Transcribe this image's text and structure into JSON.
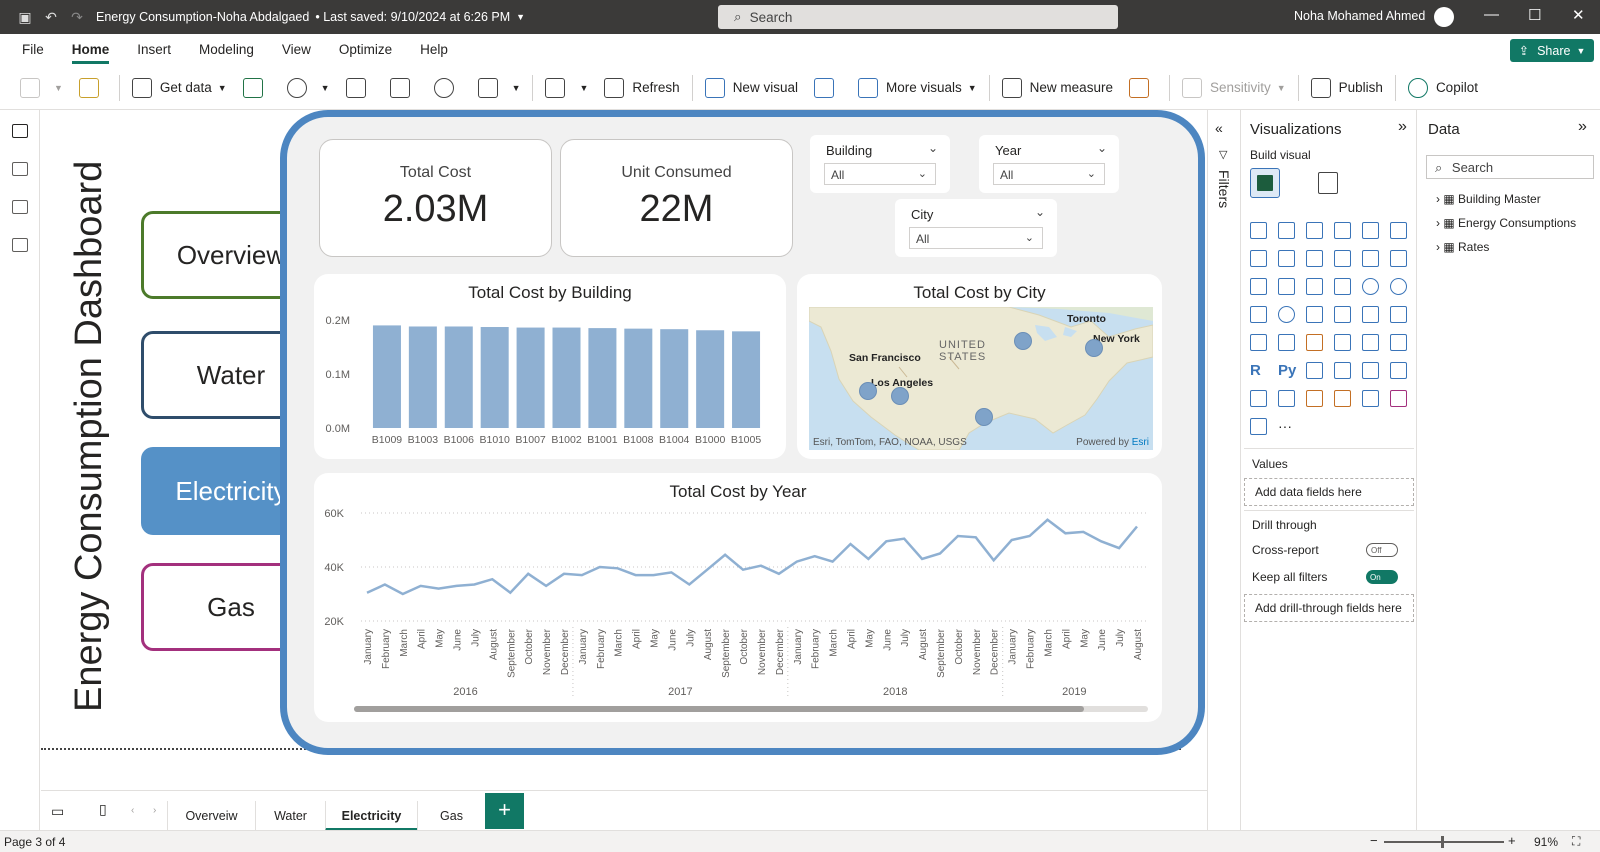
{
  "titlebar": {
    "doc_title": "Energy Consumption-Noha Abdalgaed",
    "saved_status": "• Last saved: 9/10/2024 at 6:26 PM",
    "search_placeholder": "Search",
    "user_name": "Noha Mohamed Ahmed"
  },
  "menu": {
    "items": [
      "File",
      "Home",
      "Insert",
      "Modeling",
      "View",
      "Optimize",
      "Help"
    ],
    "share_label": "Share"
  },
  "ribbon": {
    "get_data": "Get data",
    "refresh": "Refresh",
    "new_visual": "New visual",
    "more_visuals": "More visuals",
    "new_measure": "New measure",
    "sensitivity": "Sensitivity",
    "publish": "Publish",
    "copilot": "Copilot"
  },
  "dashboard": {
    "title": "Energy Consumption Dashboard",
    "nav_buttons": [
      "Overview",
      "Water",
      "Electricity",
      "Gas"
    ]
  },
  "kpis": [
    {
      "label": "Total Cost",
      "value": "2.03M"
    },
    {
      "label": "Unit Consumed",
      "value": "22M"
    }
  ],
  "slicers": {
    "building": {
      "label": "Building",
      "value": "All"
    },
    "year": {
      "label": "Year",
      "value": "All"
    },
    "city": {
      "label": "City",
      "value": "All"
    }
  },
  "map": {
    "title": "Total Cost by City",
    "country_label": "UNITED STATES",
    "cities": [
      "San Francisco",
      "Los Angeles",
      "Toronto",
      "New York"
    ],
    "attribution": "Esri, TomTom, FAO, NOAA, USGS",
    "powered_by": "Powered by",
    "powered_brand": "Esri"
  },
  "chart_data": [
    {
      "type": "bar",
      "title": "Total Cost by Building",
      "categories": [
        "B1009",
        "B1003",
        "B1006",
        "B1010",
        "B1007",
        "B1002",
        "B1001",
        "B1008",
        "B1004",
        "B1000",
        "B1005"
      ],
      "values": [
        0.19,
        0.188,
        0.188,
        0.187,
        0.186,
        0.186,
        0.185,
        0.184,
        0.183,
        0.181,
        0.179
      ],
      "ylim": [
        0,
        0.2
      ],
      "yticks": [
        "0.0M",
        "0.1M",
        "0.2M"
      ],
      "ytick_values": [
        0,
        0.1,
        0.2
      ],
      "color": "#8fb0d2"
    },
    {
      "type": "line",
      "title": "Total Cost by Year",
      "months": [
        "January",
        "February",
        "March",
        "April",
        "May",
        "June",
        "July",
        "August",
        "September",
        "October",
        "November",
        "December"
      ],
      "years": [
        "2016",
        "2017",
        "2018",
        "2019"
      ],
      "values": [
        30500,
        33500,
        30000,
        33000,
        32000,
        33000,
        33500,
        35500,
        30500,
        37500,
        33000,
        37500,
        37000,
        40000,
        39500,
        37000,
        37000,
        38000,
        33500,
        39000,
        44500,
        39000,
        40500,
        37500,
        42000,
        44000,
        42000,
        48500,
        43000,
        49500,
        50500,
        43000,
        45000,
        51500,
        51000,
        42500,
        50000,
        51500,
        57500,
        52500,
        53000,
        49500,
        47000,
        55000
      ],
      "ylim": [
        20000,
        60000
      ],
      "yticks": [
        "20K",
        "40K",
        "60K"
      ],
      "ytick_values": [
        20000,
        40000,
        60000
      ],
      "color": "#8fb0d2"
    }
  ],
  "filters_label": "Filters",
  "viz_pane": {
    "title": "Visualizations",
    "build_visual": "Build visual",
    "values_label": "Values",
    "values_placeholder": "Add data fields here",
    "drill_through": "Drill through",
    "cross_report": "Cross-report",
    "cross_report_state": "Off",
    "keep_filters": "Keep all filters",
    "keep_filters_state": "On",
    "drill_placeholder": "Add drill-through fields here",
    "r_label": "R",
    "py_label": "Py",
    "more": "···"
  },
  "data_pane": {
    "title": "Data",
    "search_placeholder": "Search",
    "tables": [
      "Building Master",
      "Energy Consumptions",
      "Rates"
    ]
  },
  "page_tabs": [
    "Overveiw",
    "Water",
    "Electricity",
    "Gas"
  ],
  "status": {
    "page": "Page 3 of 4",
    "zoom": "91%"
  }
}
